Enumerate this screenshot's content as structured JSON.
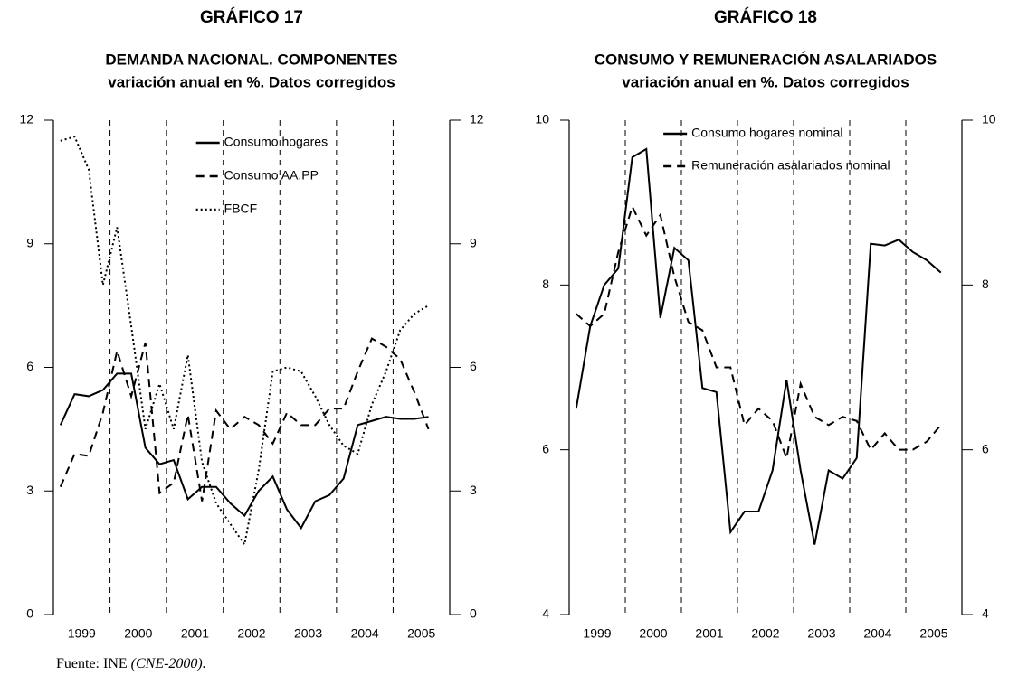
{
  "chart_data": [
    {
      "type": "line",
      "title": "GRÁFICO 17",
      "subtitle": [
        "DEMANDA NACIONAL. COMPONENTES",
        "variación anual en %. Datos corregidos"
      ],
      "x": [
        1999.125,
        1999.375,
        1999.625,
        1999.875,
        2000.125,
        2000.375,
        2000.625,
        2000.875,
        2001.125,
        2001.375,
        2001.625,
        2001.875,
        2002.125,
        2002.375,
        2002.625,
        2002.875,
        2003.125,
        2003.375,
        2003.625,
        2003.875,
        2004.125,
        2004.375,
        2004.625,
        2004.875,
        2005.125,
        2005.375,
        2005.625
      ],
      "xlim": [
        1999,
        2006
      ],
      "xticks": [
        {
          "value": 1999.5,
          "label": "1999"
        },
        {
          "value": 2000.5,
          "label": "2000"
        },
        {
          "value": 2001.5,
          "label": "2001"
        },
        {
          "value": 2002.5,
          "label": "2002"
        },
        {
          "value": 2003.5,
          "label": "2003"
        },
        {
          "value": 2004.5,
          "label": "2004"
        },
        {
          "value": 2005.5,
          "label": "2005"
        }
      ],
      "vlines": [
        2000,
        2001,
        2002,
        2003,
        2004,
        2005
      ],
      "ylim": [
        0,
        12
      ],
      "yticks": [
        0,
        3,
        6,
        9,
        12
      ],
      "y2lim": [
        0,
        12
      ],
      "y2ticks": [
        0,
        3,
        6,
        9,
        12
      ],
      "legend": "upper center",
      "series": [
        {
          "name": "Consumo hogares",
          "color": "#000000",
          "style": "solid",
          "values": [
            4.6,
            5.35,
            5.3,
            5.45,
            5.85,
            5.85,
            4.05,
            3.65,
            3.75,
            2.8,
            3.1,
            3.1,
            2.7,
            2.4,
            3.0,
            3.35,
            2.55,
            2.1,
            2.75,
            2.9,
            3.3,
            4.6,
            4.7,
            4.8,
            4.75,
            4.75,
            4.8
          ]
        },
        {
          "name": "Consumo AA.PP",
          "color": "#000000",
          "style": "dashed",
          "values": [
            3.1,
            3.9,
            3.85,
            4.9,
            6.4,
            5.3,
            6.6,
            2.95,
            3.2,
            4.85,
            2.75,
            4.95,
            4.5,
            4.8,
            4.6,
            4.15,
            4.9,
            4.6,
            4.6,
            5.0,
            5.0,
            5.9,
            6.7,
            6.5,
            6.2,
            5.4,
            4.5
          ]
        },
        {
          "name": "FBCF",
          "color": "#000000",
          "style": "dotted",
          "values": [
            11.5,
            11.6,
            10.8,
            8.0,
            9.4,
            7.0,
            4.5,
            5.6,
            4.5,
            6.3,
            3.7,
            2.7,
            2.2,
            1.7,
            3.5,
            5.9,
            6.0,
            5.9,
            5.3,
            4.6,
            4.1,
            3.9,
            5.1,
            5.9,
            6.9,
            7.3,
            7.5
          ]
        }
      ]
    },
    {
      "type": "line",
      "title": "GRÁFICO 18",
      "subtitle": [
        "CONSUMO Y REMUNERACIÓN ASALARIADOS",
        "variación anual en %. Datos corregidos"
      ],
      "x": [
        1999.125,
        1999.375,
        1999.625,
        1999.875,
        2000.125,
        2000.375,
        2000.625,
        2000.875,
        2001.125,
        2001.375,
        2001.625,
        2001.875,
        2002.125,
        2002.375,
        2002.625,
        2002.875,
        2003.125,
        2003.375,
        2003.625,
        2003.875,
        2004.125,
        2004.375,
        2004.625,
        2004.875,
        2005.125,
        2005.375,
        2005.625
      ],
      "xlim": [
        1999,
        2006
      ],
      "xticks": [
        {
          "value": 1999.5,
          "label": "1999"
        },
        {
          "value": 2000.5,
          "label": "2000"
        },
        {
          "value": 2001.5,
          "label": "2001"
        },
        {
          "value": 2002.5,
          "label": "2002"
        },
        {
          "value": 2003.5,
          "label": "2003"
        },
        {
          "value": 2004.5,
          "label": "2004"
        },
        {
          "value": 2005.5,
          "label": "2005"
        }
      ],
      "vlines": [
        2000,
        2001,
        2002,
        2003,
        2004,
        2005
      ],
      "ylim": [
        4,
        10
      ],
      "yticks": [
        4,
        6,
        8,
        10
      ],
      "y2lim": [
        4,
        10
      ],
      "y2ticks": [
        4,
        6,
        8,
        10
      ],
      "legend": "upper left",
      "series": [
        {
          "name": "Consumo hogares nominal",
          "color": "#000000",
          "style": "solid",
          "values": [
            6.5,
            7.5,
            8.0,
            8.2,
            9.55,
            9.65,
            7.6,
            8.45,
            8.3,
            6.75,
            6.7,
            5.0,
            5.25,
            5.25,
            5.75,
            6.85,
            5.75,
            4.85,
            5.75,
            5.65,
            5.9,
            8.5,
            8.48,
            8.55,
            8.4,
            8.3,
            8.15
          ]
        },
        {
          "name": "Remuneración asalariados nominal",
          "color": "#000000",
          "style": "dashed",
          "values": [
            7.65,
            7.5,
            7.65,
            8.4,
            8.95,
            8.6,
            8.85,
            8.1,
            7.55,
            7.45,
            7.0,
            7.0,
            6.3,
            6.5,
            6.35,
            5.9,
            6.8,
            6.4,
            6.3,
            6.4,
            6.35,
            6.0,
            6.2,
            6.0,
            6.0,
            6.1,
            6.3
          ]
        }
      ]
    }
  ],
  "source": "Fuente: INE",
  "source_detail": "(CNE-2000)."
}
